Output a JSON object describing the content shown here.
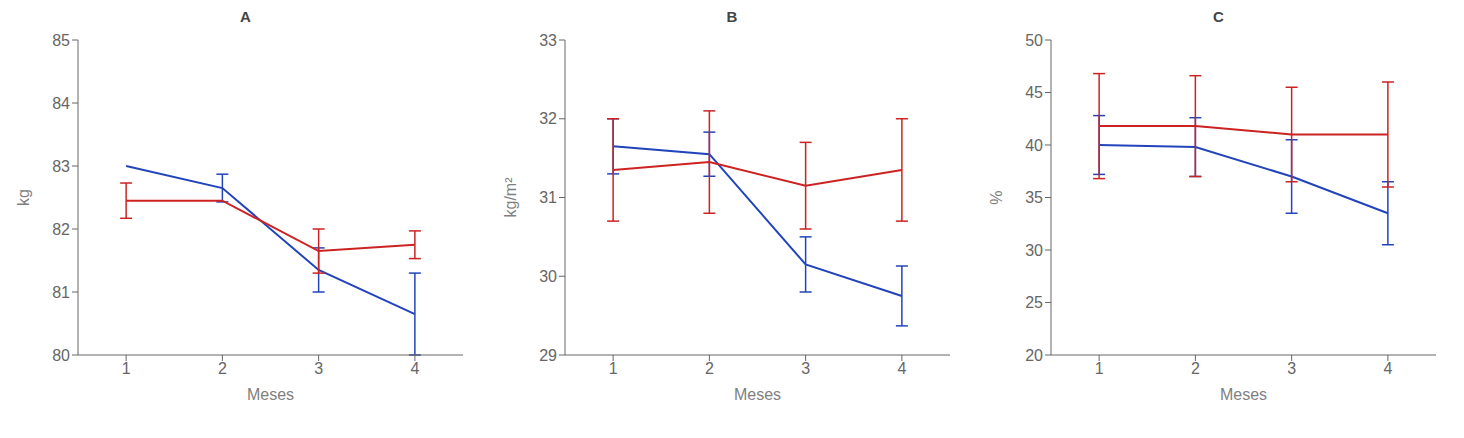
{
  "chart_data": [
    {
      "type": "line",
      "title": "A",
      "xlabel": "Meses",
      "ylabel": "kg",
      "x": [
        1,
        2,
        3,
        4
      ],
      "xlim": [
        0.5,
        4.5
      ],
      "xticks": [
        1,
        2,
        3,
        4
      ],
      "ylim": [
        80,
        85
      ],
      "yticks": [
        80,
        81,
        82,
        83,
        84,
        85
      ],
      "grid": false,
      "marker": "none",
      "series": [
        {
          "color": "#2244bb",
          "values": [
            83.0,
            82.65,
            81.35,
            80.65
          ],
          "yerr": [
            0.0,
            0.22,
            0.35,
            0.65
          ]
        },
        {
          "color": "#cc2222",
          "values": [
            82.45,
            82.45,
            81.65,
            81.75
          ],
          "yerr": [
            0.28,
            0.0,
            0.35,
            0.22
          ]
        }
      ]
    },
    {
      "type": "line",
      "title": "B",
      "xlabel": "Meses",
      "ylabel": "kg/m²",
      "x": [
        1,
        2,
        3,
        4
      ],
      "xlim": [
        0.5,
        4.5
      ],
      "xticks": [
        1,
        2,
        3,
        4
      ],
      "ylim": [
        29,
        33
      ],
      "yticks": [
        29,
        30,
        31,
        32,
        33
      ],
      "grid": false,
      "marker": "none",
      "series": [
        {
          "color": "#2244bb",
          "values": [
            31.65,
            31.55,
            30.15,
            29.75
          ],
          "yerr": [
            0.35,
            0.28,
            0.35,
            0.38
          ]
        },
        {
          "color": "#cc2222",
          "values": [
            31.35,
            31.45,
            31.15,
            31.35
          ],
          "yerr": [
            0.65,
            0.65,
            0.55,
            0.65
          ]
        }
      ]
    },
    {
      "type": "line",
      "title": "C",
      "xlabel": "Meses",
      "ylabel": "%",
      "x": [
        1,
        2,
        3,
        4
      ],
      "xlim": [
        0.5,
        4.5
      ],
      "xticks": [
        1,
        2,
        3,
        4
      ],
      "ylim": [
        20,
        50
      ],
      "yticks": [
        20,
        25,
        30,
        35,
        40,
        45,
        50
      ],
      "grid": false,
      "marker": "none",
      "series": [
        {
          "color": "#2244bb",
          "values": [
            40.0,
            39.8,
            37.0,
            33.5
          ],
          "yerr": [
            2.8,
            2.8,
            3.5,
            3.0
          ]
        },
        {
          "color": "#cc2222",
          "values": [
            41.8,
            41.8,
            41.0,
            41.0
          ],
          "yerr": [
            5.0,
            4.8,
            4.5,
            5.0
          ]
        }
      ]
    }
  ]
}
